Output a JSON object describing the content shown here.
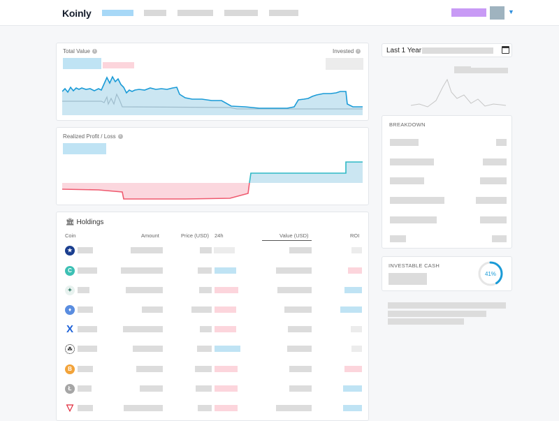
{
  "app": {
    "logo": "Koinly"
  },
  "colors": {
    "accent": "#1a9bd7",
    "positive": "#2fb9c6",
    "negative": "#ef5a6f",
    "fill_blue": "#cbe6f2",
    "fill_red": "#fbd7de"
  },
  "portfolio": {
    "total_value_label": "Total Value",
    "invested_label": "Invested"
  },
  "pnl": {
    "label": "Realized Profit / Loss"
  },
  "holdings": {
    "title": "Holdings",
    "columns": [
      "Coin",
      "Amount",
      "Price (USD)",
      "24h",
      "Value (USD)",
      "ROI"
    ],
    "rows": [
      {
        "icon": "eu-coin-icon",
        "roi": "neutral"
      },
      {
        "icon": "celo-icon",
        "roi": "negative"
      },
      {
        "icon": "tree-coin-icon",
        "roi": "positive"
      },
      {
        "icon": "ethereum-icon",
        "roi": "positive"
      },
      {
        "icon": "x-coin-icon",
        "roi": "neutral"
      },
      {
        "icon": "iota-icon",
        "roi": "neutral"
      },
      {
        "icon": "bitcoin-icon",
        "roi": "negative"
      },
      {
        "icon": "litecoin-icon",
        "roi": "positive"
      },
      {
        "icon": "tron-icon",
        "roi": "positive"
      }
    ]
  },
  "period": {
    "selected": "Last 1 Year"
  },
  "breakdown": {
    "title": "BREAKDOWN"
  },
  "cash": {
    "title": "INVESTABLE CASH",
    "percent": "41%",
    "fraction": 0.41
  }
}
